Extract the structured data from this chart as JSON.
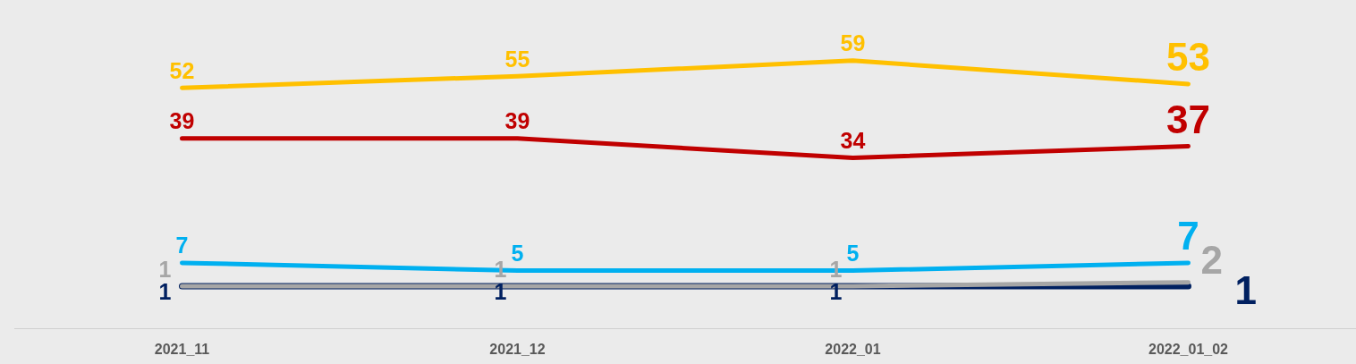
{
  "chart_data": {
    "type": "line",
    "categories": [
      "2021_11",
      "2021_12",
      "2022_01",
      "2022_01_02"
    ],
    "series": [
      {
        "color": "#ffc000",
        "values": [
          52,
          55,
          59,
          53
        ]
      },
      {
        "color": "#c00000",
        "values": [
          39,
          39,
          34,
          37
        ]
      },
      {
        "color": "#00b0f0",
        "values": [
          7,
          5,
          5,
          7
        ]
      },
      {
        "color": "#a6a6a6",
        "values": [
          1,
          1,
          1,
          2
        ]
      },
      {
        "color": "#002060",
        "values": [
          1,
          1,
          1,
          1
        ]
      }
    ],
    "tick_labels": "x",
    "data_labels": true,
    "grid": false,
    "legend": false,
    "marker": "none",
    "line_style": "solid"
  }
}
